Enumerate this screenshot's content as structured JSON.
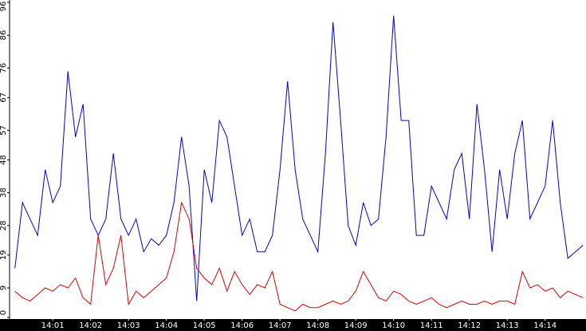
{
  "chart_data": {
    "type": "line",
    "x": [
      0,
      0.2,
      0.4,
      0.6,
      0.8,
      1,
      1.2,
      1.4,
      1.6,
      1.8,
      2,
      2.2,
      2.4,
      2.6,
      2.8,
      3,
      3.2,
      3.4,
      3.6,
      3.8,
      4,
      4.2,
      4.4,
      4.6,
      4.8,
      5,
      5.2,
      5.4,
      5.6,
      5.8,
      6,
      6.2,
      6.4,
      6.6,
      6.8,
      7,
      7.2,
      7.4,
      7.6,
      7.8,
      8,
      8.2,
      8.4,
      8.6,
      8.8,
      9,
      9.2,
      9.4,
      9.6,
      9.8,
      10,
      10.2,
      10.4,
      10.6,
      10.8,
      11,
      11.2,
      11.4,
      11.6,
      11.8,
      12,
      12.2,
      12.4,
      12.6,
      12.8,
      13,
      13.2,
      13.4,
      13.6,
      13.8,
      14,
      14.2,
      14.4,
      14.6,
      14.8,
      15
    ],
    "series": [
      {
        "color": "#0000dd",
        "values": [
          15,
          35,
          30,
          25,
          45,
          35,
          40,
          75,
          55,
          65,
          30,
          25,
          30,
          50,
          30,
          25,
          30,
          20,
          24,
          22,
          25,
          35,
          55,
          40,
          5,
          45,
          35,
          60,
          55,
          40,
          25,
          30,
          20,
          20,
          25,
          45,
          72,
          45,
          30,
          25,
          20,
          50,
          90,
          60,
          28,
          22,
          35,
          28,
          30,
          55,
          92,
          60,
          60,
          25,
          25,
          40,
          35,
          30,
          45,
          50,
          30,
          65,
          45,
          20,
          45,
          30,
          50,
          60,
          30,
          35,
          40,
          60,
          35,
          18,
          20,
          22
        ]
      },
      {
        "color": "#dd0000",
        "values": [
          8,
          6,
          5,
          7,
          9,
          8,
          10,
          9,
          12,
          6,
          4,
          25,
          10,
          15,
          25,
          4,
          8,
          6,
          8,
          10,
          12,
          20,
          35,
          30,
          15,
          12,
          10,
          15,
          8,
          14,
          10,
          7,
          10,
          9,
          14,
          4,
          3,
          2,
          4,
          3,
          3,
          4,
          5,
          4,
          5,
          8,
          14,
          10,
          6,
          5,
          8,
          7,
          5,
          4,
          5,
          6,
          4,
          3,
          4,
          5,
          4,
          4,
          5,
          4,
          5,
          5,
          4,
          14,
          9,
          10,
          8,
          9,
          6,
          8,
          7,
          6
        ]
      }
    ],
    "xlim": [
      -0.14,
      15.08
    ],
    "xticks": [
      {
        "value": 1,
        "label": "14:01"
      },
      {
        "value": 2,
        "label": "14:02"
      },
      {
        "value": 3,
        "label": "14:03"
      },
      {
        "value": 4,
        "label": "14:04"
      },
      {
        "value": 5,
        "label": "14:05"
      },
      {
        "value": 6,
        "label": "14:06"
      },
      {
        "value": 7,
        "label": "14:07"
      },
      {
        "value": 8,
        "label": "14:08"
      },
      {
        "value": 9,
        "label": "14:09"
      },
      {
        "value": 10,
        "label": "14:10"
      },
      {
        "value": 11,
        "label": "14:11"
      },
      {
        "value": 12,
        "label": "14:12"
      },
      {
        "value": 13,
        "label": "14:13"
      },
      {
        "value": 14,
        "label": "14:14"
      }
    ],
    "ylim": [
      0,
      96
    ],
    "yticks": [
      0,
      9,
      19,
      28,
      38,
      48,
      57,
      67,
      76,
      86,
      96
    ]
  }
}
